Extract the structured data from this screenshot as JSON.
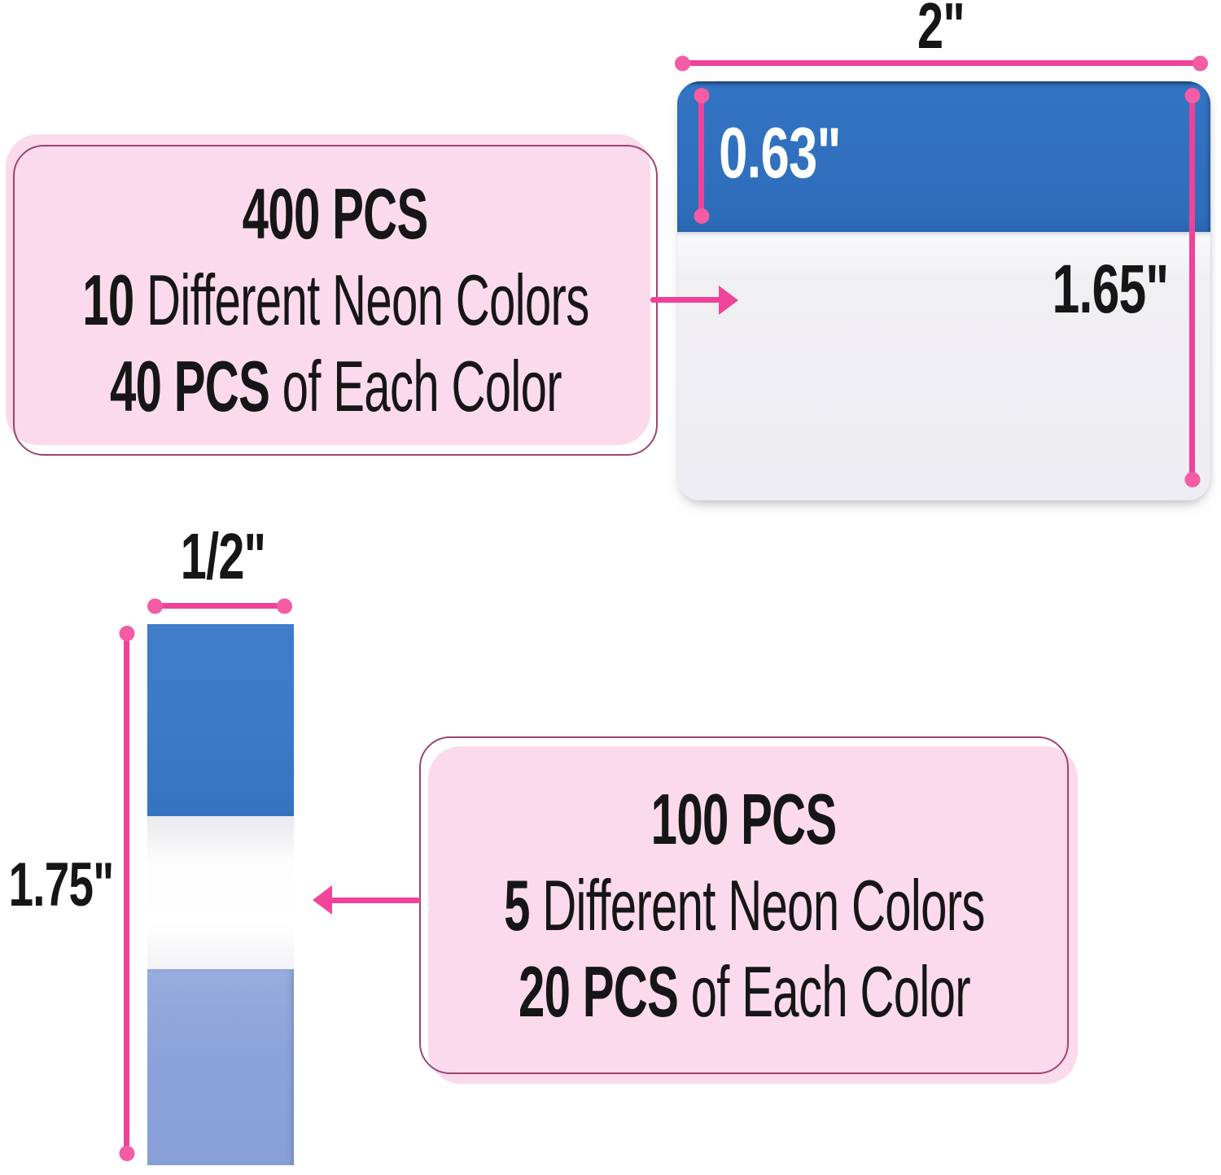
{
  "large_tab": {
    "width_label": "2\"",
    "header_height_label": "0.63\"",
    "height_label": "1.65\""
  },
  "small_tab": {
    "width_label": "1/2\"",
    "height_label": "1.75\""
  },
  "callout_top": {
    "lines": [
      {
        "segments": [
          {
            "text": "400 PCS",
            "bold": true
          }
        ]
      },
      {
        "segments": [
          {
            "text": "10",
            "bold": true
          },
          {
            "text": " Different Neon Colors",
            "bold": false
          }
        ]
      },
      {
        "segments": [
          {
            "text": "40 PCS",
            "bold": true
          },
          {
            "text": " of Each Color",
            "bold": false
          }
        ]
      }
    ]
  },
  "callout_bottom": {
    "lines": [
      {
        "segments": [
          {
            "text": "100 PCS",
            "bold": true
          }
        ]
      },
      {
        "segments": [
          {
            "text": "5",
            "bold": true
          },
          {
            "text": " Different Neon Colors",
            "bold": false
          }
        ]
      },
      {
        "segments": [
          {
            "text": "20 PCS",
            "bold": true
          },
          {
            "text": " of Each Color",
            "bold": false
          }
        ]
      }
    ]
  },
  "colors": {
    "accent_pink": "#EF4299",
    "dot_pink": "#F45CA4",
    "arrow_pink": "#F0459B",
    "callout_fill": "#FBDBEB",
    "callout_border": "#9D4471",
    "tab_blue": "#2E6DBA",
    "tab_blue_light": "#3374C4",
    "tab_body": "#F0EFF2",
    "small_blue": "#3C79C6",
    "small_white": "#FDFDFE",
    "small_peri": "#8CA3D9",
    "ink": "#161616"
  }
}
